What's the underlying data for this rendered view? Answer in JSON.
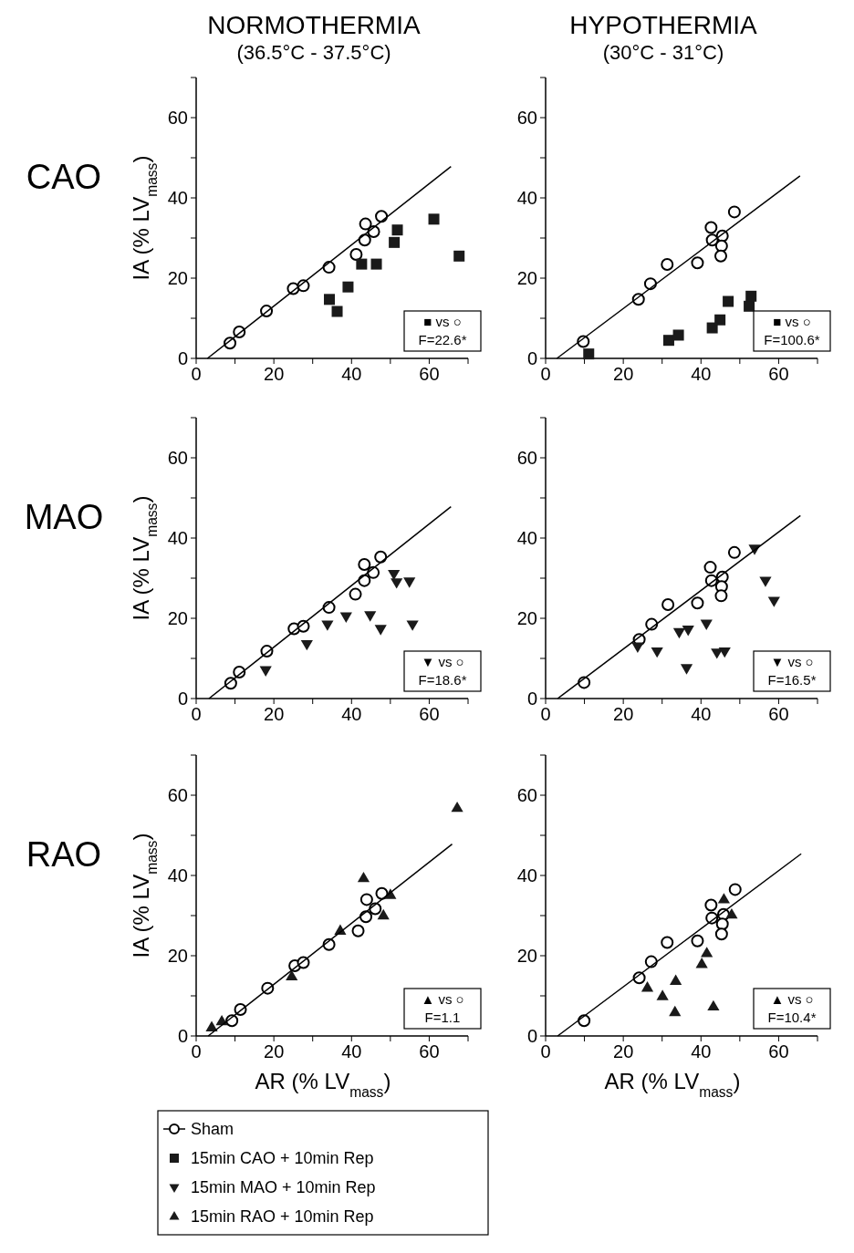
{
  "chart_data": [
    {
      "type": "scatter",
      "title": "NORMOTHERMIA",
      "subtitle": "(36.5°C - 37.5°C)",
      "ylabel": "IA (% LV$_{mass}$)",
      "xlim": [
        0,
        70
      ],
      "ylim": [
        0,
        70
      ],
      "xticks": [
        0,
        {
          "value": 10,
          "label": null
        },
        20,
        {
          "value": 30,
          "label": null
        },
        40,
        {
          "value": 50,
          "label": null
        },
        60,
        {
          "value": 70,
          "label": null
        }
      ],
      "yticks": [
        0,
        {
          "value": 10,
          "label": null
        },
        20,
        {
          "value": 30,
          "label": null
        },
        40,
        {
          "value": 50,
          "label": null
        },
        60,
        {
          "value": 70,
          "label": null
        }
      ],
      "annotations": [
        "CAO",
        "■ vs ○",
        "F=22.6*"
      ],
      "series": [
        {
          "name": "Sham",
          "marker": "circle",
          "color": "#000000",
          "x": [
            8.7,
            11.1,
            18.1,
            25.0,
            27.6,
            34.2,
            41.2,
            43.4,
            43.6,
            45.7,
            47.7
          ],
          "values": [
            3.8,
            6.6,
            11.8,
            17.4,
            18.1,
            22.7,
            25.9,
            29.5,
            33.5,
            31.6,
            35.4
          ]
        },
        {
          "name": "15min CAO + 10min Rep",
          "marker": "square",
          "color": "#1a1a1a",
          "x": [
            34.3,
            36.3,
            39.1,
            42.6,
            46.4,
            51.0,
            51.8,
            61.2,
            67.7
          ],
          "values": [
            14.7,
            11.7,
            17.8,
            23.5,
            23.5,
            28.9,
            32.0,
            34.7,
            25.5
          ]
        },
        {
          "type": "line",
          "color": "#000000",
          "x": [
            2.9,
            65.6
          ],
          "values": [
            0,
            47.8
          ]
        }
      ]
    },
    {
      "type": "scatter",
      "title": "HYPOTHERMIA",
      "subtitle": "(30°C - 31°C)",
      "xlim": [
        0,
        70
      ],
      "ylim": [
        0,
        70
      ],
      "xticks": [
        0,
        {
          "value": 10,
          "label": null
        },
        20,
        {
          "value": 30,
          "label": null
        },
        40,
        {
          "value": 50,
          "label": null
        },
        60,
        {
          "value": 70,
          "label": null
        }
      ],
      "yticks": [
        0,
        {
          "value": 10,
          "label": null
        },
        20,
        {
          "value": 30,
          "label": null
        },
        40,
        {
          "value": 50,
          "label": null
        },
        60,
        {
          "value": 70,
          "label": null
        }
      ],
      "annotations": [
        "■ vs ○",
        "F=100.6*"
      ],
      "series": [
        {
          "marker": "circle",
          "color": "#000000",
          "x": [
            9.7,
            23.9,
            27.0,
            31.3,
            39.1,
            42.6,
            42.9,
            45.5,
            45.3,
            45.1,
            48.6
          ],
          "values": [
            4.2,
            14.7,
            18.6,
            23.4,
            23.8,
            32.6,
            29.5,
            30.5,
            28.0,
            25.5,
            36.5
          ]
        },
        {
          "marker": "square",
          "color": "#1a1a1a",
          "x": [
            11.1,
            31.7,
            34.2,
            42.9,
            44.9,
            47.0,
            52.4,
            52.9
          ],
          "values": [
            1.1,
            4.5,
            5.8,
            7.6,
            9.6,
            14.2,
            13.0,
            15.5
          ]
        },
        {
          "type": "line",
          "color": "#000000",
          "x": [
            2.9,
            65.5
          ],
          "values": [
            0,
            45.5
          ]
        }
      ]
    },
    {
      "type": "scatter",
      "ylabel": "IA (% LV$_{mass}$)",
      "xlim": [
        0,
        70
      ],
      "ylim": [
        0,
        70
      ],
      "xticks": [
        0,
        {
          "value": 10,
          "label": null
        },
        20,
        {
          "value": 30,
          "label": null
        },
        40,
        {
          "value": 50,
          "label": null
        },
        60,
        {
          "value": 70,
          "label": null
        }
      ],
      "yticks": [
        0,
        {
          "value": 10,
          "label": null
        },
        20,
        {
          "value": 30,
          "label": null
        },
        40,
        {
          "value": 50,
          "label": null
        },
        60,
        {
          "value": 70,
          "label": null
        }
      ],
      "annotations": [
        "MAO",
        "▼ vs ○",
        "F=18.6*"
      ],
      "series": [
        {
          "marker": "circle",
          "color": "#000000",
          "x": [
            8.9,
            11.1,
            18.2,
            25.2,
            27.6,
            34.2,
            41.0,
            43.3,
            43.3,
            45.6,
            47.5
          ],
          "values": [
            3.8,
            6.6,
            11.8,
            17.4,
            18.0,
            22.7,
            26.0,
            29.4,
            33.4,
            31.4,
            35.3
          ]
        },
        {
          "name": "15min MAO + 10min Rep",
          "marker": "triangle-down",
          "color": "#1a1a1a",
          "x": [
            17.9,
            28.5,
            33.8,
            38.6,
            44.8,
            47.5,
            50.9,
            51.6,
            54.9,
            55.7
          ],
          "values": [
            7.1,
            13.6,
            18.5,
            20.5,
            20.8,
            17.4,
            31.1,
            29.0,
            29.2,
            18.5
          ]
        },
        {
          "type": "line",
          "color": "#000000",
          "x": [
            3.3,
            65.6
          ],
          "values": [
            0,
            47.8
          ]
        }
      ]
    },
    {
      "type": "scatter",
      "xlim": [
        0,
        70
      ],
      "ylim": [
        0,
        70
      ],
      "xticks": [
        0,
        {
          "value": 10,
          "label": null
        },
        20,
        {
          "value": 30,
          "label": null
        },
        40,
        {
          "value": 50,
          "label": null
        },
        60,
        {
          "value": 70,
          "label": null
        }
      ],
      "yticks": [
        0,
        {
          "value": 10,
          "label": null
        },
        20,
        {
          "value": 30,
          "label": null
        },
        40,
        {
          "value": 50,
          "label": null
        },
        60,
        {
          "value": 70,
          "label": null
        }
      ],
      "annotations": [
        "▼ vs ○",
        "F=16.5*"
      ],
      "series": [
        {
          "marker": "circle",
          "color": "#000000",
          "x": [
            9.9,
            24.1,
            27.3,
            31.5,
            39.1,
            42.4,
            42.7,
            45.5,
            45.3,
            45.2,
            48.6
          ],
          "values": [
            4.0,
            14.7,
            18.5,
            23.4,
            23.8,
            32.7,
            29.4,
            30.3,
            27.9,
            25.6,
            36.4
          ]
        },
        {
          "marker": "triangle-down",
          "color": "#1a1a1a",
          "x": [
            23.7,
            28.7,
            34.4,
            36.7,
            36.3,
            41.4,
            44.1,
            46.1,
            53.8,
            56.6,
            58.8
          ],
          "values": [
            13.0,
            11.8,
            16.6,
            17.2,
            7.6,
            18.7,
            11.5,
            11.8,
            37.4,
            29.4,
            24.4
          ]
        },
        {
          "type": "line",
          "color": "#000000",
          "x": [
            3.1,
            65.6
          ],
          "values": [
            0,
            45.6
          ]
        }
      ]
    },
    {
      "type": "scatter",
      "ylabel": "IA (% LV$_{mass}$)",
      "xlabel": "AR (% LV$_{mass}$)",
      "legend": "bottom",
      "xlim": [
        0,
        70
      ],
      "ylim": [
        0,
        70
      ],
      "xticks": [
        0,
        {
          "value": 10,
          "label": null
        },
        20,
        {
          "value": 30,
          "label": null
        },
        40,
        {
          "value": 50,
          "label": null
        },
        60,
        {
          "value": 70,
          "label": null
        }
      ],
      "yticks": [
        0,
        {
          "value": 10,
          "label": null
        },
        20,
        {
          "value": 30,
          "label": null
        },
        40,
        {
          "value": 50,
          "label": null
        },
        60,
        {
          "value": 70,
          "label": null
        }
      ],
      "annotations": [
        "RAO",
        "▲ vs ○",
        "F=1.1"
      ],
      "series": [
        {
          "marker": "circle",
          "color": "#000000",
          "x": [
            9.2,
            11.4,
            18.4,
            25.4,
            27.6,
            34.2,
            41.7,
            43.7,
            43.9,
            46.1,
            47.8
          ],
          "values": [
            3.8,
            6.6,
            11.9,
            17.5,
            18.3,
            22.8,
            26.2,
            29.7,
            34.0,
            31.7,
            35.5
          ]
        },
        {
          "name": "15min RAO + 10min Rep",
          "marker": "triangle",
          "color": "#1a1a1a",
          "x": [
            4.0,
            6.6,
            24.6,
            37.1,
            43.1,
            48.2,
            50.0,
            67.2
          ],
          "values": [
            2.1,
            3.6,
            14.8,
            26.2,
            39.3,
            30.0,
            35.1,
            56.8
          ]
        },
        {
          "type": "line",
          "color": "#000000",
          "x": [
            3.1,
            65.9
          ],
          "values": [
            0,
            47.8
          ]
        }
      ]
    },
    {
      "type": "scatter",
      "xlabel": "AR (% LV$_{mass}$)",
      "xlim": [
        0,
        70
      ],
      "ylim": [
        0,
        70
      ],
      "xticks": [
        0,
        {
          "value": 10,
          "label": null
        },
        20,
        {
          "value": 30,
          "label": null
        },
        40,
        {
          "value": 50,
          "label": null
        },
        60,
        {
          "value": 70,
          "label": null
        }
      ],
      "yticks": [
        0,
        {
          "value": 10,
          "label": null
        },
        20,
        {
          "value": 30,
          "label": null
        },
        40,
        {
          "value": 50,
          "label": null
        },
        60,
        {
          "value": 70,
          "label": null
        }
      ],
      "annotations": [
        "▲ vs ○",
        "F=10.4*"
      ],
      "series": [
        {
          "marker": "circle",
          "color": "#000000",
          "x": [
            9.9,
            24.1,
            27.2,
            31.3,
            39.1,
            42.6,
            42.8,
            45.8,
            45.5,
            45.3,
            48.8
          ],
          "values": [
            3.8,
            14.5,
            18.5,
            23.3,
            23.7,
            32.6,
            29.4,
            30.3,
            27.9,
            25.4,
            36.5
          ]
        },
        {
          "marker": "triangle",
          "color": "#1a1a1a",
          "x": [
            26.2,
            30.1,
            33.5,
            33.3,
            40.2,
            41.5,
            43.2,
            45.9,
            47.9
          ],
          "values": [
            12.0,
            9.9,
            13.7,
            5.9,
            17.9,
            20.6,
            7.3,
            34.0,
            30.2
          ]
        },
        {
          "type": "line",
          "color": "#000000",
          "x": [
            3.1,
            65.8
          ],
          "values": [
            0,
            45.4
          ]
        }
      ]
    }
  ]
}
